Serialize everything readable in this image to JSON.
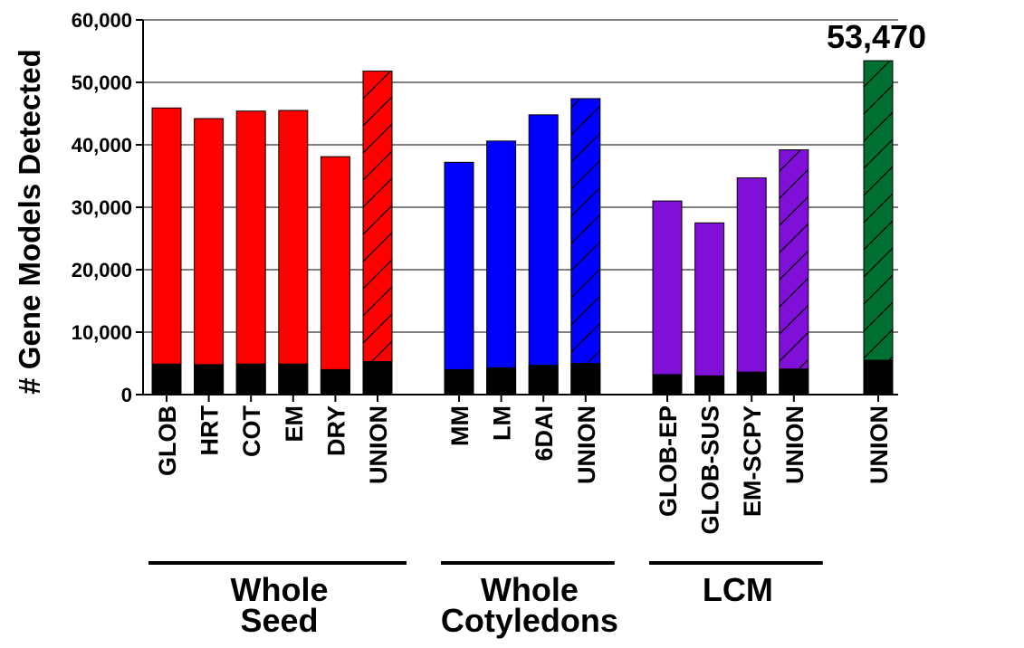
{
  "chart_data": {
    "type": "bar",
    "ylabel": "# Gene Models Detected",
    "ylim": [
      0,
      60000
    ],
    "yticks": [
      "0",
      "10,000",
      "20,000",
      "30,000",
      "40,000",
      "50,000",
      "60,000"
    ],
    "grid": true,
    "groups": [
      {
        "name": [
          "Whole",
          "Seed"
        ],
        "color": "#ff0000",
        "bars": [
          {
            "label": "GLOB",
            "value": 45900,
            "base": 4900,
            "hatched": false
          },
          {
            "label": "HRT",
            "value": 44200,
            "base": 4800,
            "hatched": false
          },
          {
            "label": "COT",
            "value": 45400,
            "base": 4900,
            "hatched": false
          },
          {
            "label": "EM",
            "value": 45500,
            "base": 4900,
            "hatched": false
          },
          {
            "label": "DRY",
            "value": 38100,
            "base": 4000,
            "hatched": false
          },
          {
            "label": "UNION",
            "value": 51800,
            "base": 5300,
            "hatched": true
          }
        ]
      },
      {
        "name": [
          "Whole",
          "Cotyledons"
        ],
        "color": "#0000ff",
        "bars": [
          {
            "label": "MM",
            "value": 37200,
            "base": 4000,
            "hatched": false
          },
          {
            "label": "LM",
            "value": 40600,
            "base": 4300,
            "hatched": false
          },
          {
            "label": "6DAI",
            "value": 44800,
            "base": 4700,
            "hatched": false
          },
          {
            "label": "UNION",
            "value": 47400,
            "base": 5000,
            "hatched": true
          }
        ]
      },
      {
        "name": [
          "LCM"
        ],
        "color": "#8010d8",
        "bars": [
          {
            "label": "GLOB-EP",
            "value": 31000,
            "base": 3200,
            "hatched": false
          },
          {
            "label": "GLOB-SUS",
            "value": 27500,
            "base": 3000,
            "hatched": false
          },
          {
            "label": "EM-SCPY",
            "value": 34700,
            "base": 3600,
            "hatched": false
          },
          {
            "label": "UNION",
            "value": 39200,
            "base": 4100,
            "hatched": true
          }
        ]
      },
      {
        "name": [],
        "color": "#007030",
        "bars": [
          {
            "label": "UNION",
            "value": 53470,
            "base": 5500,
            "hatched": true
          }
        ]
      }
    ],
    "annotation": "53,470"
  }
}
